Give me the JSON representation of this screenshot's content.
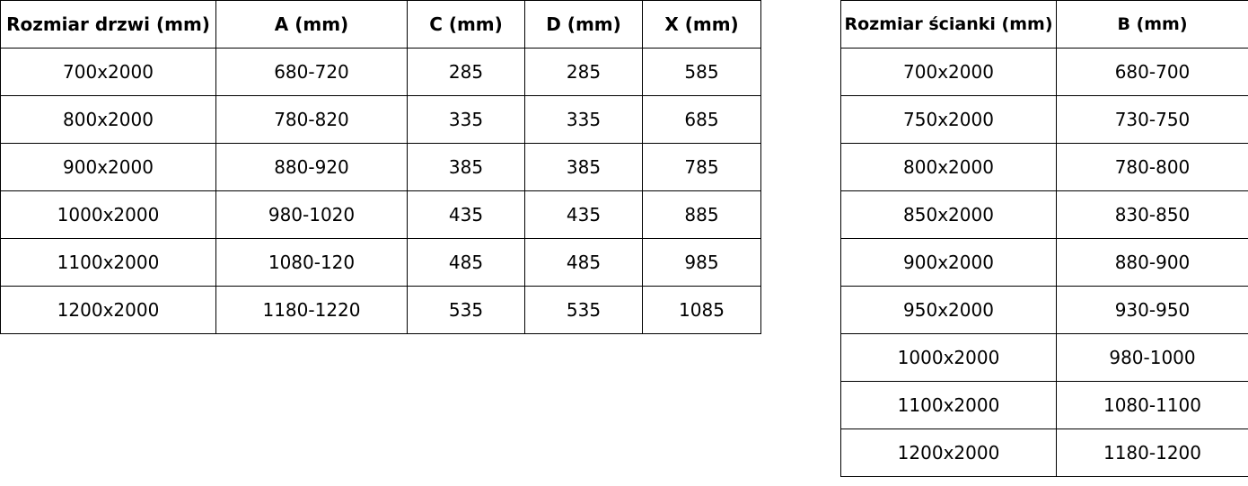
{
  "door_table": {
    "headers": [
      "Rozmiar drzwi (mm)",
      "A (mm)",
      "C (mm)",
      "D (mm)",
      "X (mm)"
    ],
    "rows": [
      [
        "700x2000",
        "680-720",
        "285",
        "285",
        "585"
      ],
      [
        "800x2000",
        "780-820",
        "335",
        "335",
        "685"
      ],
      [
        "900x2000",
        "880-920",
        "385",
        "385",
        "785"
      ],
      [
        "1000x2000",
        "980-1020",
        "435",
        "435",
        "885"
      ],
      [
        "1100x2000",
        "1080-120",
        "485",
        "485",
        "985"
      ],
      [
        "1200x2000",
        "1180-1220",
        "535",
        "535",
        "1085"
      ]
    ]
  },
  "panel_table": {
    "headers": [
      "Rozmiar ścianki (mm)",
      "B (mm)"
    ],
    "rows": [
      [
        "700x2000",
        "680-700"
      ],
      [
        "750x2000",
        "730-750"
      ],
      [
        "800x2000",
        "780-800"
      ],
      [
        "850x2000",
        "830-850"
      ],
      [
        "900x2000",
        "880-900"
      ],
      [
        "950x2000",
        "930-950"
      ],
      [
        "1000x2000",
        "980-1000"
      ],
      [
        "1100x2000",
        "1080-1100"
      ],
      [
        "1200x2000",
        "1180-1200"
      ]
    ]
  }
}
